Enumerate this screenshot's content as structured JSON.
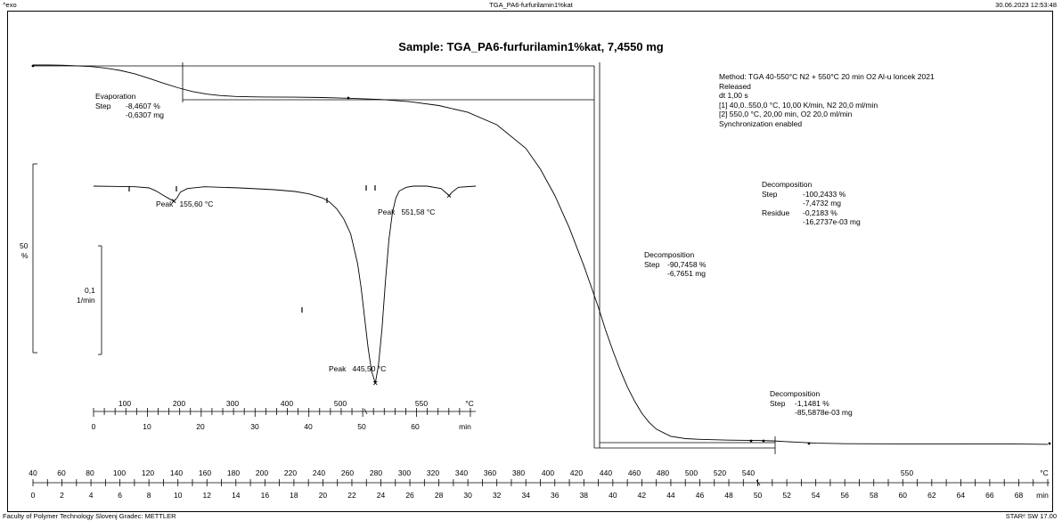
{
  "header": {
    "exo": "^exo",
    "file_title": "TGA_PA6-furfurilamin1%kat",
    "datetime": "30.06.2023 12:53:48"
  },
  "sample_title": "Sample: TGA_PA6-furfurilamin1%kat, 7,4550 mg",
  "method": {
    "lines": [
      "Method: TGA 40-550°C N2 + 550°C 20 min O2 Al-u loncek 2021",
      "Released",
      "dt 1,00 s",
      "[1] 40,0..550,0 °C, 10,00 K/min, N2 20,0 ml/min",
      "[2] 550,0 °C, 20,00 min, O2 20,0 ml/min",
      "Synchronization enabled"
    ]
  },
  "steps": {
    "evaporation": {
      "title": "Evaporation",
      "step_label": "Step",
      "pct": "-8,4607 %",
      "mg": "-0,6307 mg"
    },
    "decomposition1": {
      "title": "Decomposition",
      "step_label": "Step",
      "pct": "-90,7458 %",
      "mg": "-6,7651 mg"
    },
    "decomposition2": {
      "title": "Decomposition",
      "step_label": "Step",
      "pct": "-100,2433 %",
      "mg": "-7,4732 mg",
      "residue_label": "Residue",
      "residue_pct": "-0,2183 %",
      "residue_mg": "-16,2737e-03 mg"
    },
    "decomposition3": {
      "title": "Decomposition",
      "step_label": "Step",
      "pct": "-1,1481 %",
      "mg": "-85,5878e-03 mg"
    }
  },
  "peaks": {
    "p1": "Peak   155,60 °C",
    "p2": "Peak   445,50 °C",
    "p3": "Peak   551,58 °C"
  },
  "scales": {
    "tga_scale_value": "50",
    "tga_scale_unit": "%",
    "dtg_scale_value": "0,1",
    "dtg_scale_unit": "1/min"
  },
  "footer": {
    "left": "Faculty of Polymer Technology Slovenj Gradec: METTLER",
    "right": "STARᵉ SW 17.00"
  },
  "chart_data": [
    {
      "type": "line",
      "title": "TGA",
      "x_unit": "min",
      "x": [
        0,
        1,
        2,
        3,
        4,
        5,
        6,
        7,
        8,
        9,
        10,
        11,
        12,
        13,
        14,
        15,
        16,
        18,
        20,
        22,
        24,
        26,
        28,
        30,
        32,
        34,
        35,
        36,
        37,
        38,
        38.5,
        39,
        39.5,
        40,
        40.5,
        41,
        41.5,
        42,
        42.5,
        43,
        44,
        45,
        46,
        48,
        50,
        51,
        52,
        54,
        56,
        60,
        64,
        68,
        70
      ],
      "y": [
        100,
        100,
        99.95,
        99.8,
        99.6,
        99.2,
        98.6,
        97.7,
        96.5,
        95.2,
        94.0,
        93.0,
        92.3,
        91.9,
        91.7,
        91.6,
        91.55,
        91.5,
        91.4,
        91.2,
        90.9,
        90.3,
        89.3,
        87.5,
        84.2,
        78.0,
        72.5,
        65.5,
        57.0,
        47.0,
        41.5,
        36.0,
        30.0,
        24.5,
        19.5,
        15.0,
        11.2,
        8.0,
        5.6,
        3.8,
        1.9,
        1.3,
        1.1,
        0.9,
        0.8,
        0.7,
        0.5,
        0.1,
        -0.05,
        -0.1,
        -0.1,
        -0.15,
        -0.2
      ],
      "y_unit": "%"
    },
    {
      "type": "line",
      "title": "DTG",
      "x_unit": "°C",
      "x": [
        40,
        100,
        120,
        130,
        140,
        150,
        155.6,
        160,
        165,
        175,
        200,
        250,
        300,
        330,
        350,
        370,
        380,
        390,
        400,
        410,
        420,
        425,
        430,
        435,
        440,
        445.5,
        450,
        455,
        460,
        465,
        470,
        475,
        480,
        490,
        500,
        520,
        540,
        548,
        551.58,
        556,
        565,
        590
      ],
      "y": [
        0,
        -0.001,
        -0.003,
        -0.008,
        -0.015,
        -0.022,
        -0.025,
        -0.02,
        -0.01,
        -0.004,
        -0.001,
        -0.003,
        -0.006,
        -0.009,
        -0.013,
        -0.02,
        -0.027,
        -0.038,
        -0.055,
        -0.08,
        -0.13,
        -0.17,
        -0.22,
        -0.27,
        -0.31,
        -0.33,
        -0.3,
        -0.24,
        -0.16,
        -0.09,
        -0.045,
        -0.02,
        -0.008,
        -0.002,
        0,
        0,
        -0.004,
        -0.012,
        -0.016,
        -0.01,
        -0.002,
        0
      ],
      "y_unit": "1/min",
      "peaks_c": [
        155.6,
        445.5,
        551.58
      ]
    }
  ],
  "axes": {
    "bottom_temp_ticks": [
      "40",
      "60",
      "80",
      "100",
      "120",
      "140",
      "160",
      "180",
      "200",
      "220",
      "240",
      "260",
      "280",
      "300",
      "320",
      "340",
      "360",
      "380",
      "400",
      "420",
      "440",
      "460",
      "480",
      "500",
      "520",
      "540",
      "550",
      "°C"
    ],
    "bottom_time_ticks": [
      "0",
      "2",
      "4",
      "6",
      "8",
      "10",
      "12",
      "14",
      "16",
      "18",
      "20",
      "22",
      "24",
      "26",
      "28",
      "30",
      "32",
      "34",
      "36",
      "38",
      "40",
      "42",
      "44",
      "46",
      "48",
      "50",
      "52",
      "54",
      "56",
      "58",
      "60",
      "62",
      "64",
      "66",
      "68",
      "min"
    ],
    "inset_temp_ticks": [
      "100",
      "200",
      "300",
      "400",
      "500",
      "550",
      "°C"
    ],
    "inset_time_ticks": [
      "0",
      "10",
      "20",
      "30",
      "40",
      "50",
      "60",
      "min"
    ]
  }
}
